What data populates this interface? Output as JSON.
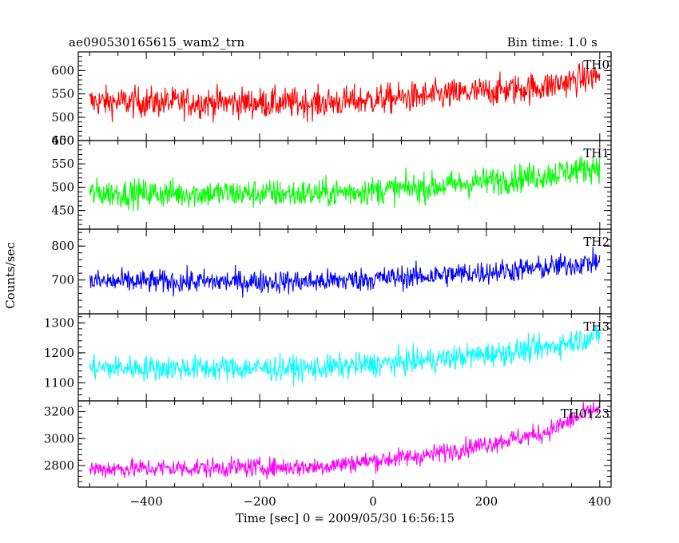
{
  "header": {
    "plot_name": "ae090530165615_wam2_trn",
    "bin_time": "Bin time: 1.0 s"
  },
  "chart_data": {
    "type": "line",
    "title": "ae090530165615_wam2_trn",
    "xlabel": "Time [sec] 0 = 2009/05/30 16:56:15",
    "ylabel": "Counts/sec",
    "xlim": [
      -520,
      420
    ],
    "xticks": [
      -400,
      -200,
      0,
      200,
      400
    ],
    "x_range_data": [
      -500,
      400
    ],
    "grid": false,
    "panels": [
      {
        "name": "TH0",
        "color": "#ff0000",
        "ylim": [
          450,
          640
        ],
        "yticks": [
          450,
          500,
          550,
          600
        ],
        "ytick_labels": [
          "450",
          "500",
          "550",
          "600"
        ],
        "trend": [
          [
            -500,
            533
          ],
          [
            -100,
            530
          ],
          [
            100,
            545
          ],
          [
            300,
            565
          ],
          [
            400,
            590
          ]
        ],
        "noise": 30
      },
      {
        "name": "TH1",
        "color": "#00ff00",
        "ylim": [
          410,
          600
        ],
        "yticks": [
          450,
          500,
          550,
          600
        ],
        "ytick_labels": [
          "450",
          "500",
          "550",
          "600"
        ],
        "trend": [
          [
            -500,
            487
          ],
          [
            -100,
            486
          ],
          [
            100,
            500
          ],
          [
            300,
            525
          ],
          [
            400,
            545
          ]
        ],
        "noise": 28
      },
      {
        "name": "TH2",
        "color": "#0000ff",
        "ylim": [
          600,
          850
        ],
        "yticks": [
          700,
          800
        ],
        "ytick_labels": [
          "700",
          "800"
        ],
        "trend": [
          [
            -500,
            695
          ],
          [
            -100,
            695
          ],
          [
            100,
            712
          ],
          [
            300,
            735
          ],
          [
            400,
            755
          ]
        ],
        "noise": 32
      },
      {
        "name": "TH3",
        "color": "#00ffff",
        "ylim": [
          1040,
          1330
        ],
        "yticks": [
          1100,
          1200,
          1300
        ],
        "ytick_labels": [
          "1100",
          "1200",
          "1300"
        ],
        "trend": [
          [
            -500,
            1150
          ],
          [
            -100,
            1148
          ],
          [
            100,
            1175
          ],
          [
            300,
            1215
          ],
          [
            400,
            1260
          ]
        ],
        "noise": 38
      },
      {
        "name": "TH0123",
        "color": "#ff00ff",
        "ylim": [
          2640,
          3280
        ],
        "yticks": [
          2800,
          3000,
          3200
        ],
        "ytick_labels": [
          "2800",
          "3000",
          "3200"
        ],
        "trend": [
          [
            -500,
            2775
          ],
          [
            -100,
            2790
          ],
          [
            100,
            2880
          ],
          [
            300,
            3040
          ],
          [
            400,
            3230
          ]
        ],
        "noise": 65
      }
    ]
  }
}
